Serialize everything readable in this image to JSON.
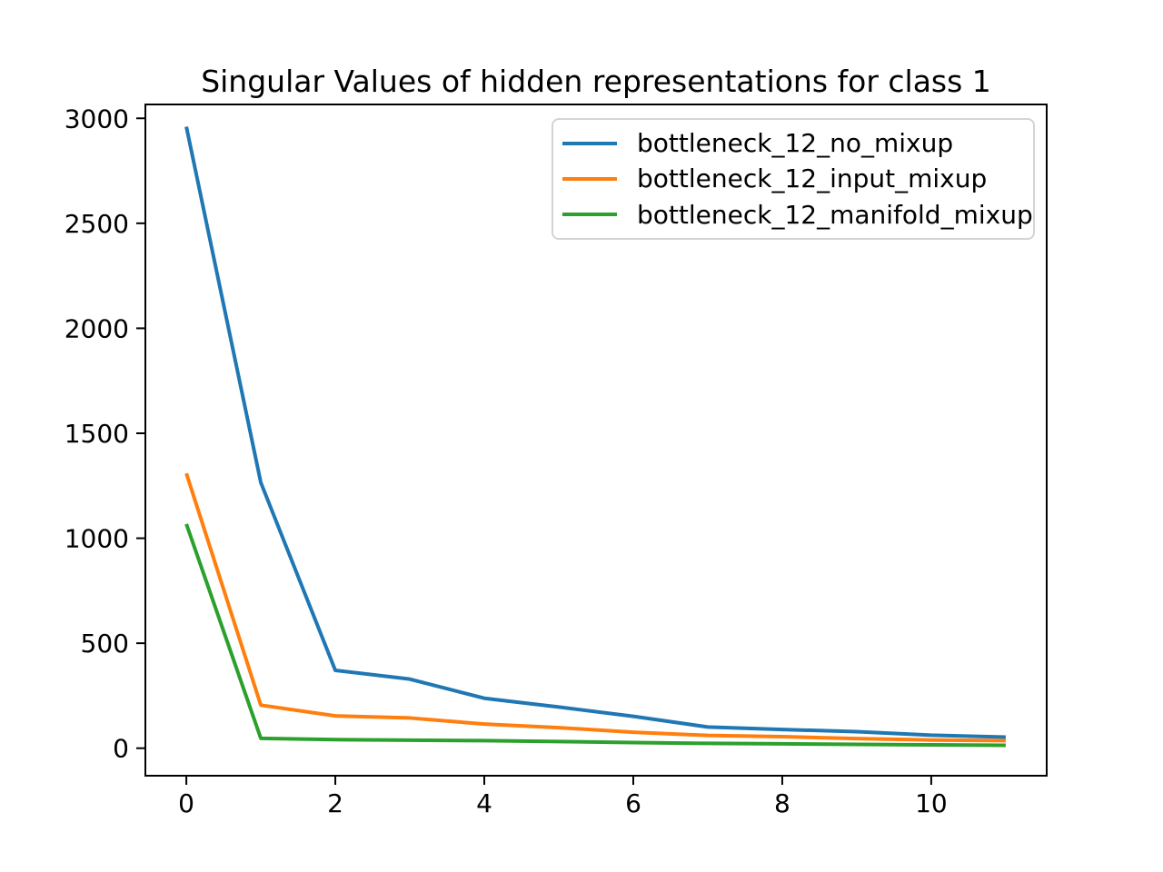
{
  "chart_data": {
    "type": "line",
    "title": "Singular Values of hidden representations for class 1",
    "xlabel": "",
    "ylabel": "",
    "grid": false,
    "legend_position": "upper right",
    "background_color": "#ffffff",
    "axes_color": "#000000",
    "x": [
      0,
      1,
      2,
      3,
      4,
      5,
      6,
      7,
      8,
      9,
      10,
      11
    ],
    "series": [
      {
        "name": "bottleneck_12_no_mixup",
        "color": "#1f77b4",
        "values": [
          2960,
          1265,
          371,
          329,
          238,
          196,
          152,
          101,
          89,
          79,
          62,
          53
        ]
      },
      {
        "name": "bottleneck_12_input_mixup",
        "color": "#ff7f0e",
        "values": [
          1309,
          205,
          154,
          144,
          115,
          98,
          76,
          61,
          55,
          46,
          39,
          36
        ]
      },
      {
        "name": "bottleneck_12_manifold_mixup",
        "color": "#2ca02c",
        "values": [
          1068,
          47,
          41,
          38,
          36,
          32,
          27,
          23,
          21,
          18,
          16,
          14
        ]
      }
    ],
    "xticks": [
      0,
      2,
      4,
      6,
      8,
      10
    ],
    "yticks": [
      0,
      500,
      1000,
      1500,
      2000,
      2500,
      3000
    ],
    "xlim": [
      -0.55,
      11.55
    ],
    "ylim": [
      -131,
      3066
    ]
  }
}
